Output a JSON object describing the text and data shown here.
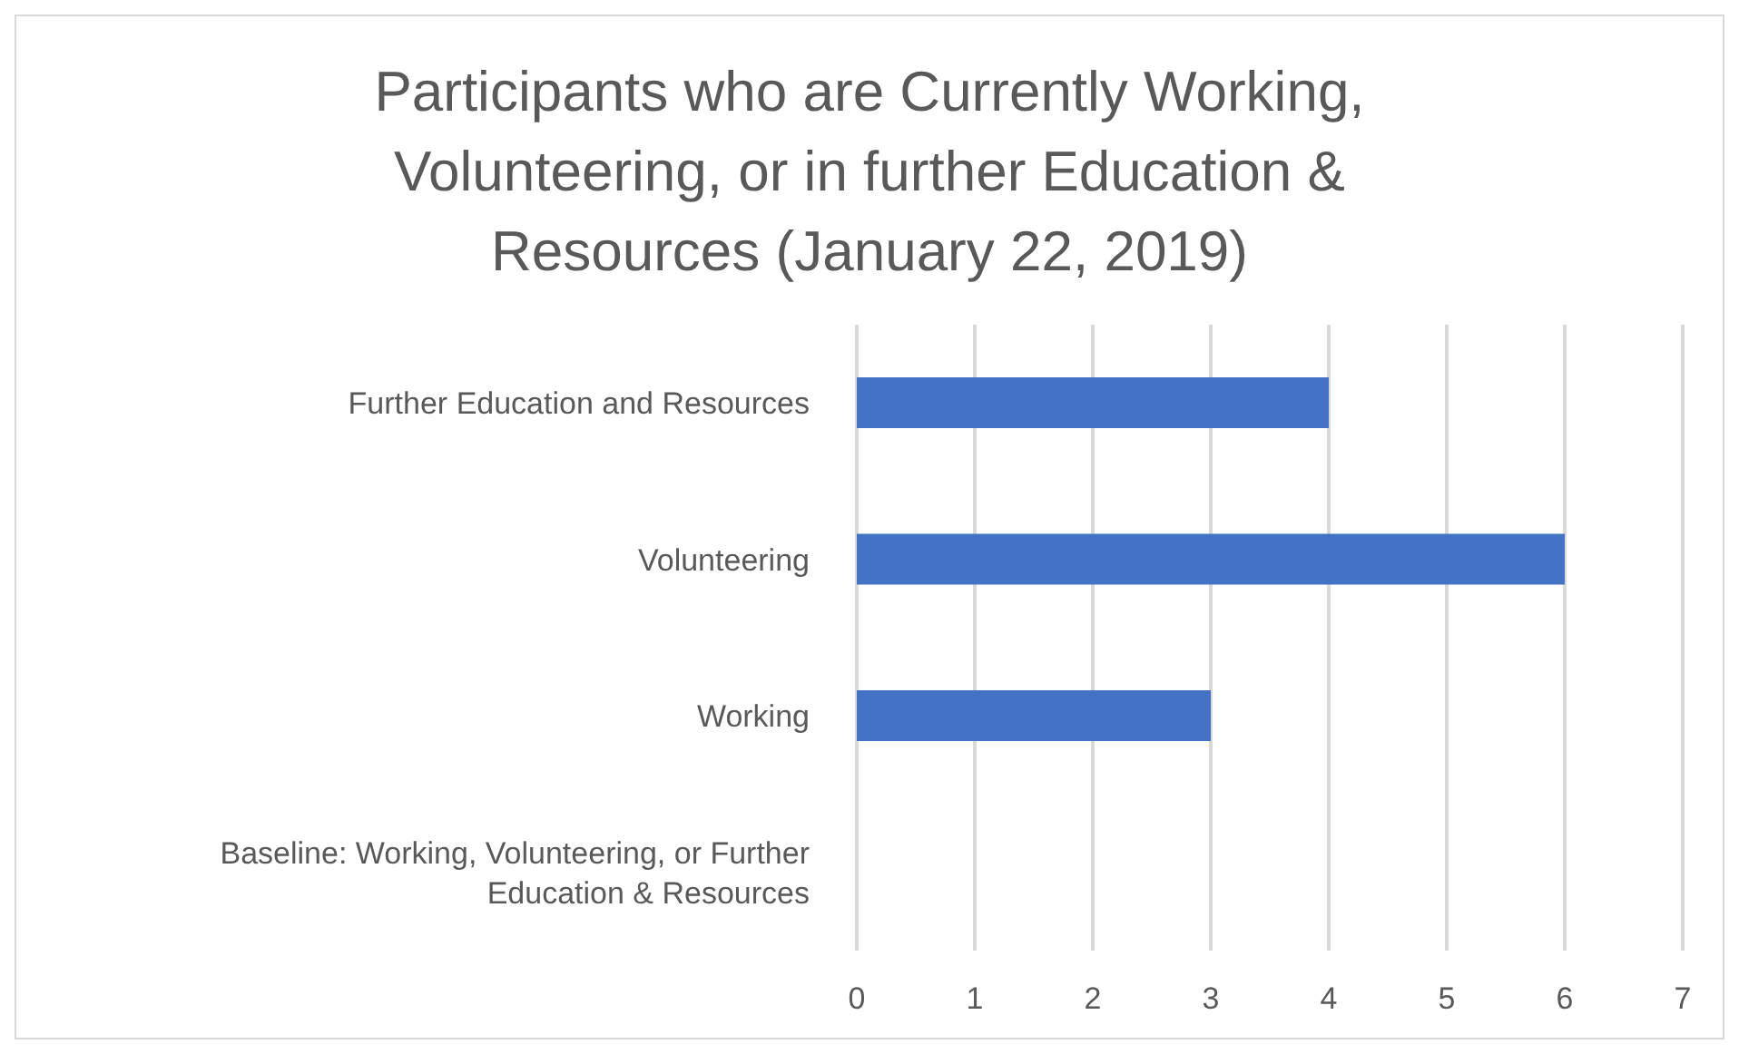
{
  "chart_data": {
    "type": "bar",
    "orientation": "horizontal",
    "title": "Participants who are Currently Working, Volunteering, or in further Education & Resources (January 22, 2019)",
    "categories": [
      "Further Education and Resources",
      "Volunteering",
      "Working",
      "Baseline: Working, Volunteering, or Further Education & Resources"
    ],
    "values": [
      4,
      6,
      3,
      0
    ],
    "color": "#4472c4",
    "xlim": [
      0,
      7
    ],
    "xticks": [
      0,
      1,
      2,
      3,
      4,
      5,
      6,
      7
    ],
    "grid": "x",
    "legend": false
  }
}
